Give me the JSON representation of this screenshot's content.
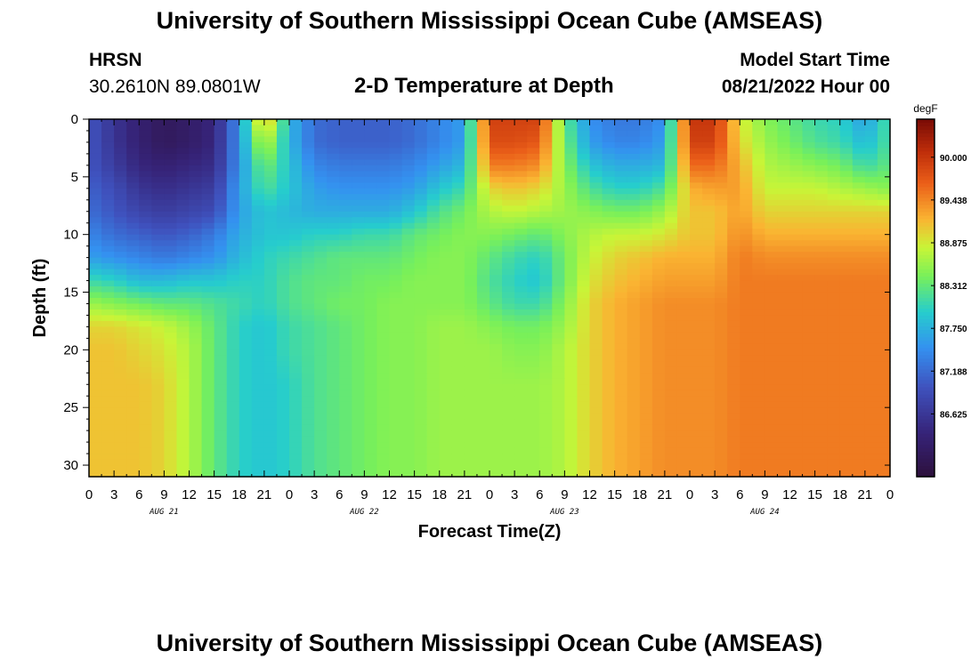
{
  "header": {
    "title": "University of Southern Mississippi Ocean Cube (AMSEAS)",
    "station_name": "HRSN",
    "coordinates": "30.2610N  89.0801W",
    "subtitle": "2-D Temperature at Depth",
    "model_start_label": "Model Start Time",
    "model_start_value": "08/21/2022 Hour 00"
  },
  "footer": {
    "title": "University of Southern Mississippi Ocean Cube (AMSEAS)"
  },
  "chart_data": {
    "type": "heatmap",
    "title": "2-D Temperature at Depth",
    "xlabel": "Forecast Time(Z)",
    "ylabel": "Depth (ft)",
    "x_ticks": [
      "0",
      "3",
      "6",
      "9",
      "12",
      "15",
      "18",
      "21",
      "0",
      "3",
      "6",
      "9",
      "12",
      "15",
      "18",
      "21",
      "0",
      "3",
      "6",
      "9",
      "12",
      "15",
      "18",
      "21",
      "0",
      "3",
      "6",
      "9",
      "12",
      "15",
      "18",
      "21",
      "0"
    ],
    "day_labels": [
      "AUG 21",
      "AUG 22",
      "AUG 23",
      "AUG 24"
    ],
    "x_range_hours": [
      0,
      96
    ],
    "y_ticks": [
      "0",
      "5",
      "10",
      "15",
      "20",
      "25",
      "30"
    ],
    "y_range_ft": [
      0,
      31
    ],
    "colorbar": {
      "unit": "degF",
      "tick_labels": [
        "90.000",
        "89.438",
        "88.875",
        "88.312",
        "87.750",
        "87.188",
        "86.625"
      ],
      "tick_values": [
        90.0,
        89.438,
        88.875,
        88.312,
        87.75,
        87.188,
        86.625
      ],
      "range": [
        85.8,
        90.5
      ]
    },
    "x_hours": [
      0,
      3,
      6,
      9,
      12,
      15,
      18,
      21,
      24,
      27,
      30,
      33,
      36,
      39,
      42,
      45,
      48,
      51,
      54,
      57,
      60,
      63,
      66,
      69,
      72,
      75,
      78,
      81,
      84,
      87,
      90,
      93,
      96
    ],
    "depth_ft": [
      0,
      2,
      4,
      6,
      8,
      10,
      12,
      14,
      16,
      18,
      20,
      23,
      26,
      29,
      31
    ],
    "temperature_degF": [
      [
        87.0,
        86.6,
        86.3,
        86.1,
        86.2,
        86.4,
        87.5,
        89.3,
        87.8,
        87.2,
        87.1,
        87.1,
        87.1,
        87.2,
        87.4,
        87.6,
        89.9,
        89.9,
        89.9,
        88.3,
        87.5,
        87.3,
        87.3,
        87.5,
        90.0,
        90.0,
        88.9,
        88.5,
        88.3,
        88.1,
        88.0,
        87.6,
        88.2
      ],
      [
        87.0,
        86.6,
        86.3,
        86.1,
        86.2,
        86.4,
        87.5,
        88.8,
        87.8,
        87.2,
        87.1,
        87.1,
        87.1,
        87.2,
        87.4,
        87.6,
        89.8,
        89.8,
        89.7,
        88.4,
        87.6,
        87.4,
        87.4,
        87.6,
        89.9,
        89.9,
        89.0,
        88.6,
        88.4,
        88.2,
        88.1,
        87.8,
        88.2
      ],
      [
        87.0,
        86.7,
        86.4,
        86.3,
        86.4,
        86.5,
        87.5,
        88.4,
        87.9,
        87.4,
        87.3,
        87.3,
        87.3,
        87.4,
        87.6,
        87.8,
        89.5,
        89.5,
        89.4,
        88.5,
        87.9,
        87.7,
        87.7,
        87.8,
        89.6,
        89.6,
        89.2,
        88.7,
        88.6,
        88.5,
        88.4,
        88.1,
        88.3
      ],
      [
        87.1,
        86.9,
        86.6,
        86.5,
        86.6,
        86.7,
        87.6,
        88.2,
        87.9,
        87.6,
        87.5,
        87.5,
        87.5,
        87.6,
        87.9,
        88.1,
        89.0,
        89.1,
        89.0,
        88.6,
        88.2,
        88.0,
        88.0,
        88.2,
        89.2,
        89.3,
        89.3,
        88.8,
        88.8,
        88.8,
        88.7,
        88.6,
        88.5
      ],
      [
        87.2,
        87.0,
        86.8,
        86.7,
        86.8,
        86.9,
        87.6,
        87.9,
        87.8,
        87.7,
        87.7,
        87.7,
        87.7,
        87.9,
        88.2,
        88.4,
        88.7,
        88.8,
        88.7,
        88.6,
        88.5,
        88.4,
        88.4,
        88.6,
        89.1,
        89.1,
        89.3,
        89.0,
        89.0,
        89.0,
        89.0,
        89.0,
        89.0
      ],
      [
        87.4,
        87.2,
        87.1,
        87.0,
        87.1,
        87.3,
        87.7,
        87.9,
        87.9,
        88.0,
        88.0,
        88.1,
        88.1,
        88.3,
        88.4,
        88.5,
        88.5,
        88.4,
        88.3,
        88.5,
        88.7,
        88.8,
        88.8,
        88.9,
        89.1,
        89.1,
        89.4,
        89.2,
        89.2,
        89.2,
        89.2,
        89.2,
        89.2
      ],
      [
        87.6,
        87.5,
        87.4,
        87.3,
        87.4,
        87.5,
        87.8,
        88.0,
        88.1,
        88.2,
        88.3,
        88.3,
        88.3,
        88.4,
        88.5,
        88.5,
        88.3,
        88.1,
        88.0,
        88.4,
        88.8,
        89.0,
        89.1,
        89.2,
        89.2,
        89.2,
        89.5,
        89.4,
        89.4,
        89.4,
        89.4,
        89.4,
        89.4
      ],
      [
        88.1,
        88.0,
        87.8,
        87.8,
        87.9,
        87.9,
        88.0,
        88.0,
        88.2,
        88.3,
        88.3,
        88.4,
        88.4,
        88.5,
        88.5,
        88.5,
        88.2,
        88.0,
        87.9,
        88.4,
        88.9,
        89.1,
        89.2,
        89.3,
        89.3,
        89.3,
        89.5,
        89.5,
        89.5,
        89.5,
        89.5,
        89.5,
        89.5
      ],
      [
        88.6,
        88.5,
        88.4,
        88.3,
        88.3,
        88.2,
        88.1,
        88.0,
        88.2,
        88.3,
        88.4,
        88.4,
        88.5,
        88.5,
        88.5,
        88.5,
        88.3,
        88.1,
        88.1,
        88.5,
        89.0,
        89.2,
        89.3,
        89.4,
        89.4,
        89.4,
        89.5,
        89.5,
        89.5,
        89.5,
        89.5,
        89.5,
        89.5
      ],
      [
        89.0,
        89.0,
        88.9,
        88.8,
        88.6,
        88.3,
        88.0,
        87.9,
        88.1,
        88.2,
        88.3,
        88.4,
        88.5,
        88.5,
        88.6,
        88.6,
        88.5,
        88.4,
        88.4,
        88.6,
        89.0,
        89.2,
        89.3,
        89.4,
        89.4,
        89.4,
        89.5,
        89.5,
        89.5,
        89.5,
        89.5,
        89.5,
        89.5
      ],
      [
        89.1,
        89.1,
        89.0,
        88.9,
        88.7,
        88.3,
        88.0,
        87.9,
        88.1,
        88.2,
        88.3,
        88.4,
        88.5,
        88.5,
        88.6,
        88.6,
        88.6,
        88.5,
        88.5,
        88.7,
        89.0,
        89.2,
        89.3,
        89.4,
        89.4,
        89.4,
        89.5,
        89.5,
        89.5,
        89.5,
        89.5,
        89.5,
        89.5
      ],
      [
        89.1,
        89.1,
        89.1,
        89.0,
        88.7,
        88.3,
        88.0,
        87.9,
        88.0,
        88.2,
        88.3,
        88.4,
        88.5,
        88.5,
        88.6,
        88.6,
        88.6,
        88.6,
        88.6,
        88.7,
        89.0,
        89.2,
        89.3,
        89.4,
        89.4,
        89.4,
        89.5,
        89.5,
        89.5,
        89.5,
        89.5,
        89.5,
        89.5
      ],
      [
        89.1,
        89.1,
        89.1,
        89.0,
        88.7,
        88.3,
        88.0,
        87.9,
        88.0,
        88.2,
        88.3,
        88.4,
        88.5,
        88.5,
        88.6,
        88.6,
        88.6,
        88.6,
        88.6,
        88.7,
        89.0,
        89.2,
        89.3,
        89.4,
        89.4,
        89.4,
        89.5,
        89.5,
        89.5,
        89.5,
        89.5,
        89.5,
        89.5
      ],
      [
        89.1,
        89.1,
        89.1,
        89.0,
        88.7,
        88.3,
        88.0,
        87.9,
        88.0,
        88.2,
        88.3,
        88.4,
        88.5,
        88.5,
        88.6,
        88.6,
        88.6,
        88.6,
        88.6,
        88.7,
        89.0,
        89.2,
        89.3,
        89.4,
        89.4,
        89.4,
        89.5,
        89.5,
        89.5,
        89.5,
        89.5,
        89.5,
        89.5
      ],
      [
        89.1,
        89.1,
        89.1,
        89.0,
        88.7,
        88.3,
        88.0,
        87.9,
        88.0,
        88.2,
        88.3,
        88.4,
        88.5,
        88.5,
        88.6,
        88.6,
        88.6,
        88.6,
        88.6,
        88.7,
        89.0,
        89.2,
        89.3,
        89.4,
        89.4,
        89.4,
        89.5,
        89.5,
        89.5,
        89.5,
        89.5,
        89.5,
        89.5
      ]
    ]
  }
}
